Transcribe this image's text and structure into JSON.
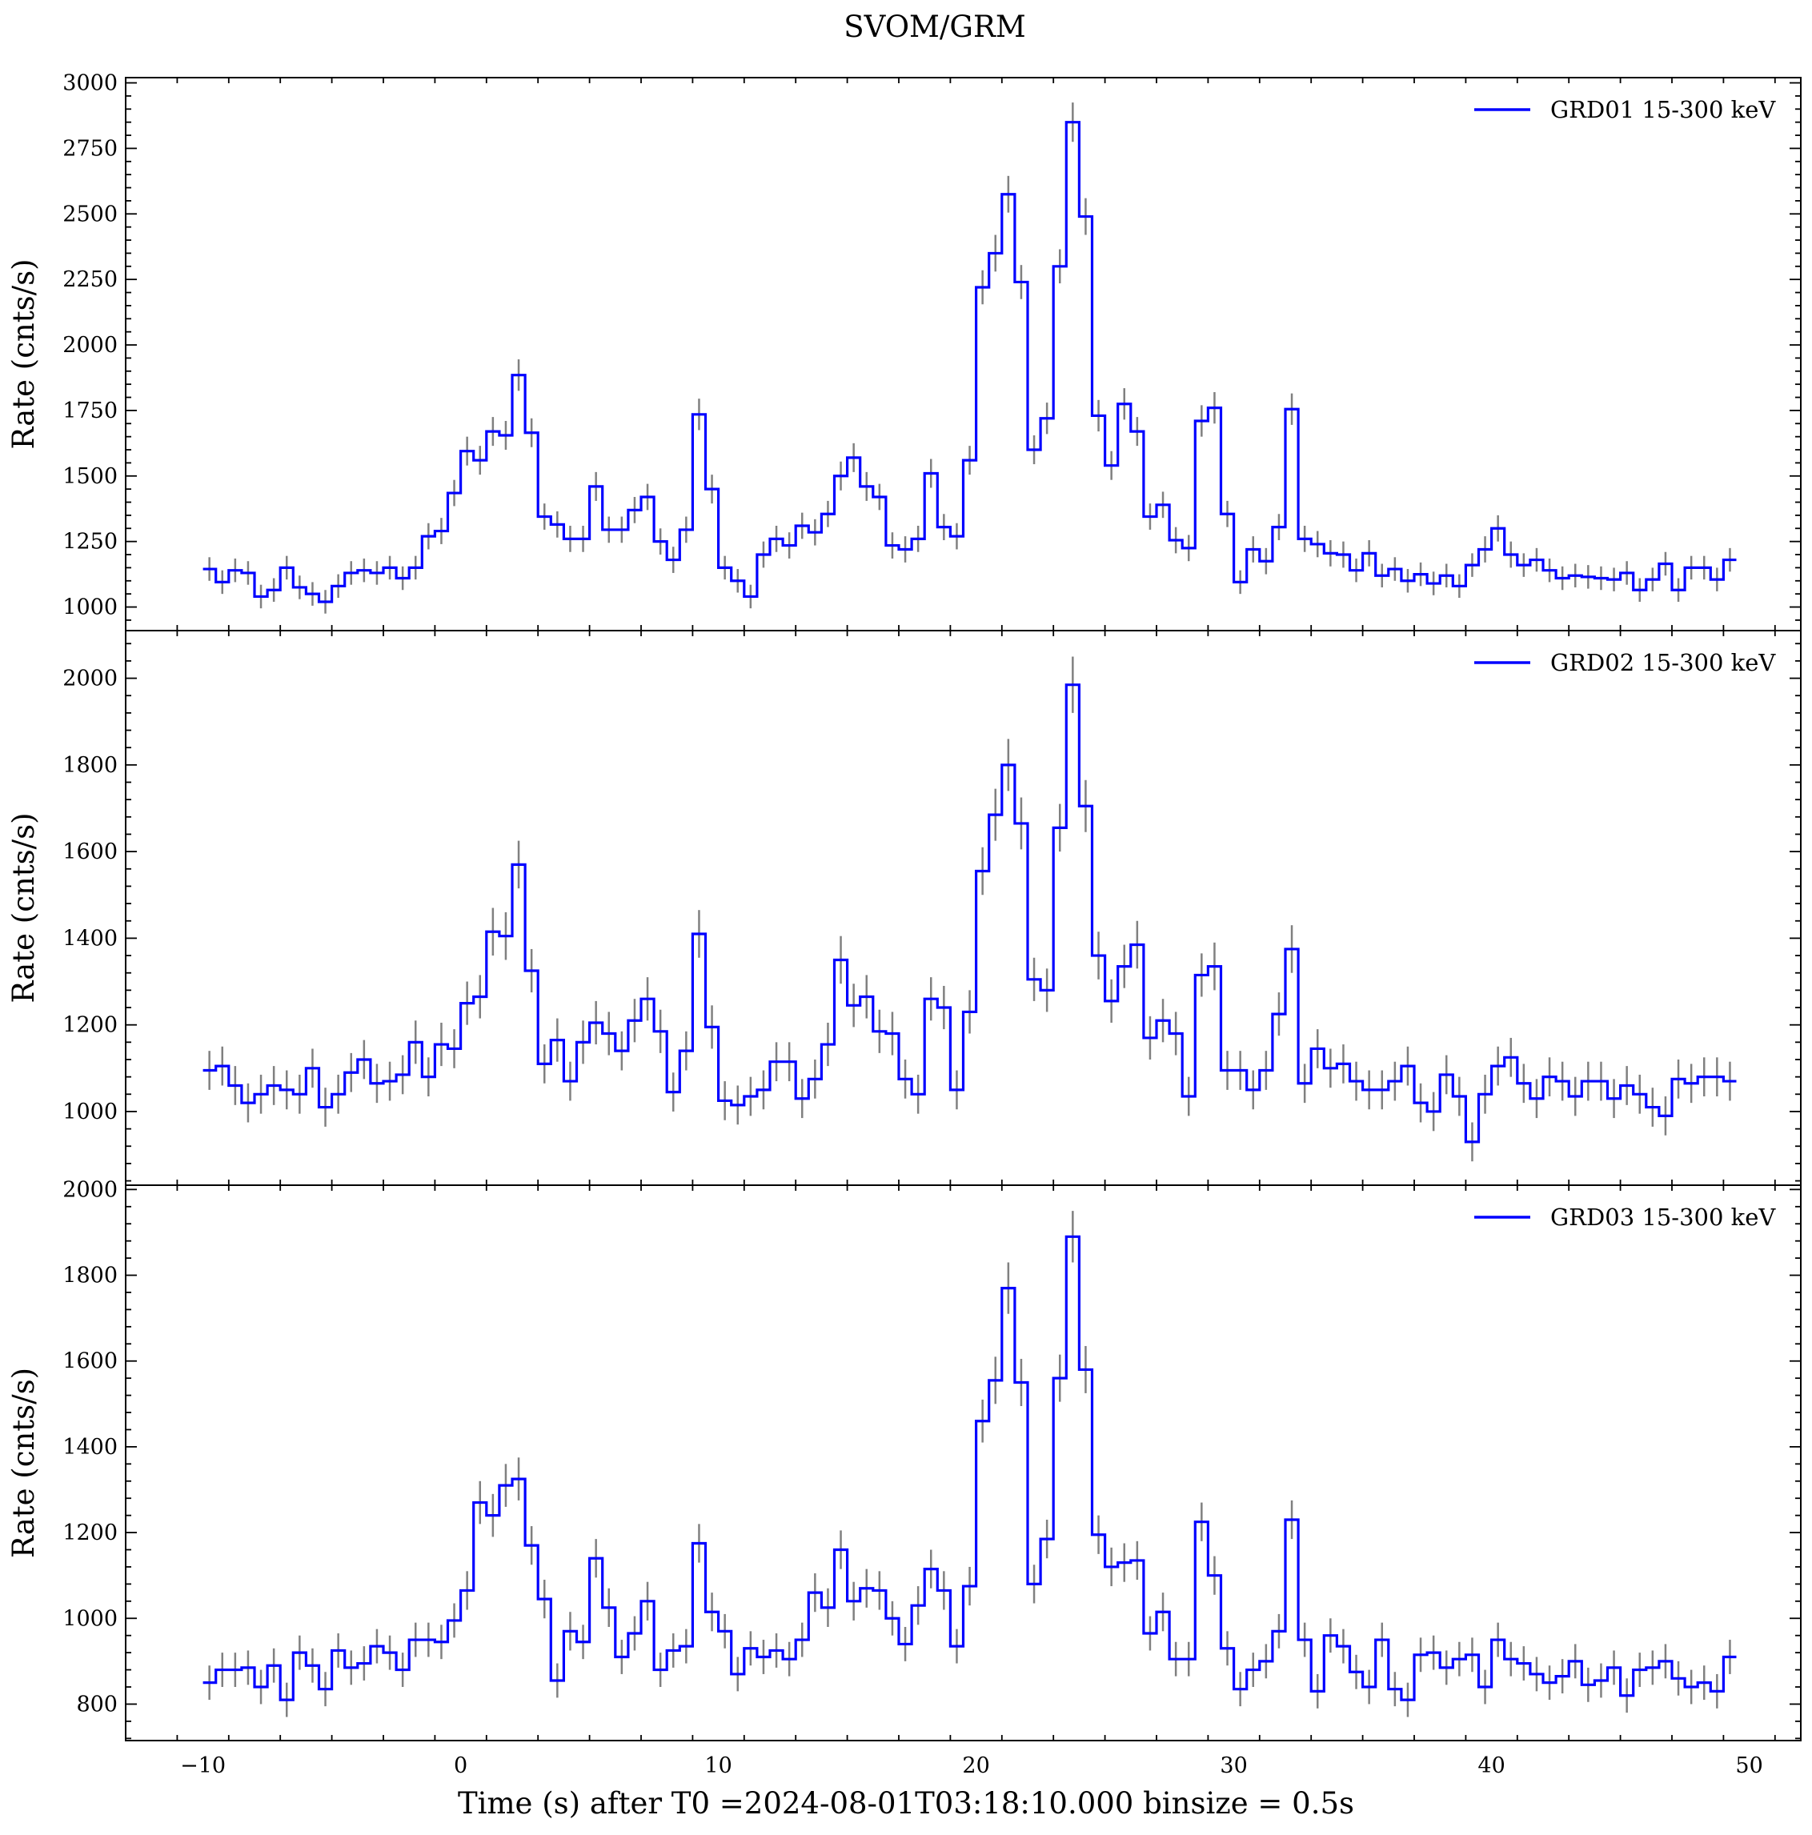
{
  "title": "SVOM/GRM",
  "chart_data": {
    "type": "line",
    "title": "SVOM/GRM",
    "xlabel": "Time (s) after T0 =2024-08-01T03:18:10.000 binsize = 0.5s",
    "ylabel": "Rate (cnts/s)",
    "xlim": [
      -13,
      52
    ],
    "xticks": [
      -10,
      0,
      10,
      20,
      30,
      40,
      50
    ],
    "bin_start": -10,
    "binsize": 0.5,
    "step_style": "histogram steps with error bars",
    "line_color": "#0000ff",
    "errorbar_color": "#808080",
    "legend_location": "upper right",
    "panels": [
      {
        "legend": "GRD01 15-300 keV",
        "ylabel": "Rate (cnts/s)",
        "ylim": [
          910,
          3020
        ],
        "yticks": [
          1000,
          1250,
          1500,
          1750,
          2000,
          2250,
          2500,
          2750,
          3000
        ],
        "values": [
          1145,
          1095,
          1140,
          1130,
          1040,
          1065,
          1150,
          1075,
          1050,
          1020,
          1080,
          1130,
          1140,
          1130,
          1150,
          1110,
          1150,
          1270,
          1290,
          1435,
          1595,
          1560,
          1670,
          1655,
          1885,
          1665,
          1345,
          1315,
          1260,
          1260,
          1460,
          1295,
          1295,
          1370,
          1420,
          1250,
          1180,
          1295,
          1735,
          1450,
          1150,
          1100,
          1040,
          1200,
          1260,
          1235,
          1310,
          1285,
          1355,
          1500,
          1570,
          1460,
          1420,
          1235,
          1220,
          1260,
          1510,
          1305,
          1270,
          1560,
          2220,
          2350,
          2575,
          2240,
          1600,
          1720,
          2300,
          2850,
          2490,
          1730,
          1540,
          1775,
          1670,
          1345,
          1390,
          1255,
          1225,
          1710,
          1760,
          1355,
          1095,
          1220,
          1175,
          1305,
          1755,
          1260,
          1240,
          1205,
          1200,
          1140,
          1205,
          1120,
          1145,
          1100,
          1125,
          1090,
          1120,
          1080,
          1160,
          1220,
          1300,
          1200,
          1160,
          1180,
          1140,
          1110,
          1120,
          1115,
          1110,
          1105,
          1130,
          1065,
          1105,
          1165,
          1065,
          1150,
          1150,
          1105,
          1180
        ],
        "errors": [
          45,
          45,
          45,
          45,
          45,
          45,
          45,
          45,
          45,
          45,
          45,
          45,
          45,
          45,
          45,
          45,
          45,
          50,
          50,
          50,
          55,
          55,
          55,
          55,
          60,
          55,
          50,
          50,
          50,
          50,
          55,
          50,
          50,
          50,
          50,
          50,
          50,
          50,
          60,
          55,
          45,
          45,
          45,
          50,
          50,
          50,
          50,
          50,
          50,
          55,
          55,
          55,
          50,
          50,
          50,
          50,
          55,
          50,
          50,
          55,
          65,
          70,
          70,
          65,
          55,
          60,
          65,
          75,
          70,
          60,
          55,
          60,
          55,
          50,
          50,
          50,
          50,
          60,
          60,
          50,
          45,
          50,
          50,
          50,
          60,
          50,
          50,
          50,
          50,
          45,
          50,
          45,
          45,
          45,
          45,
          45,
          45,
          45,
          45,
          50,
          50,
          50,
          45,
          45,
          45,
          45,
          45,
          45,
          45,
          45,
          45,
          45,
          45,
          45,
          45,
          45,
          45,
          45,
          45
        ]
      },
      {
        "legend": "GRD02 15-300 keV",
        "ylabel": "Rate (cnts/s)",
        "ylim": [
          830,
          2110
        ],
        "yticks": [
          1000,
          1200,
          1400,
          1600,
          1800,
          2000
        ],
        "values": [
          1095,
          1105,
          1060,
          1020,
          1040,
          1060,
          1050,
          1040,
          1100,
          1010,
          1040,
          1090,
          1120,
          1065,
          1070,
          1085,
          1160,
          1080,
          1155,
          1145,
          1250,
          1265,
          1415,
          1405,
          1570,
          1325,
          1110,
          1165,
          1070,
          1160,
          1205,
          1180,
          1140,
          1210,
          1260,
          1185,
          1045,
          1140,
          1410,
          1195,
          1025,
          1015,
          1035,
          1050,
          1115,
          1115,
          1030,
          1075,
          1155,
          1350,
          1245,
          1265,
          1185,
          1180,
          1075,
          1040,
          1260,
          1240,
          1050,
          1230,
          1555,
          1685,
          1800,
          1665,
          1305,
          1280,
          1655,
          1985,
          1705,
          1360,
          1255,
          1335,
          1385,
          1170,
          1210,
          1180,
          1035,
          1315,
          1335,
          1095,
          1095,
          1050,
          1095,
          1225,
          1375,
          1065,
          1145,
          1100,
          1110,
          1070,
          1050,
          1050,
          1070,
          1105,
          1020,
          1000,
          1085,
          1035,
          930,
          1040,
          1105,
          1125,
          1065,
          1030,
          1080,
          1070,
          1035,
          1070,
          1070,
          1030,
          1060,
          1040,
          1010,
          990,
          1075,
          1065,
          1080,
          1080,
          1070
        ],
        "errors": [
          45,
          45,
          45,
          45,
          45,
          45,
          45,
          45,
          45,
          45,
          45,
          45,
          45,
          45,
          45,
          45,
          50,
          45,
          50,
          45,
          50,
          50,
          55,
          55,
          55,
          50,
          45,
          50,
          45,
          50,
          50,
          50,
          45,
          50,
          50,
          50,
          45,
          45,
          55,
          50,
          45,
          45,
          45,
          45,
          45,
          45,
          45,
          45,
          50,
          55,
          50,
          50,
          50,
          50,
          45,
          45,
          50,
          50,
          45,
          50,
          55,
          60,
          60,
          60,
          50,
          50,
          55,
          65,
          60,
          55,
          50,
          50,
          55,
          50,
          50,
          50,
          45,
          50,
          55,
          45,
          45,
          45,
          45,
          50,
          55,
          45,
          45,
          45,
          45,
          45,
          45,
          45,
          45,
          45,
          45,
          45,
          45,
          45,
          45,
          45,
          45,
          45,
          45,
          45,
          45,
          45,
          45,
          45,
          45,
          45,
          45,
          45,
          45,
          45,
          45,
          45,
          45,
          45,
          45
        ]
      },
      {
        "legend": "GRD03 15-300 keV",
        "ylabel": "Rate (cnts/s)",
        "ylim": [
          715,
          2010
        ],
        "yticks": [
          800,
          1000,
          1200,
          1400,
          1600,
          1800,
          2000
        ],
        "values": [
          850,
          880,
          880,
          885,
          840,
          890,
          810,
          920,
          890,
          835,
          925,
          885,
          895,
          935,
          920,
          880,
          950,
          950,
          945,
          995,
          1065,
          1270,
          1240,
          1310,
          1325,
          1170,
          1045,
          855,
          970,
          945,
          1140,
          1025,
          910,
          965,
          1040,
          880,
          925,
          935,
          1175,
          1015,
          970,
          870,
          930,
          910,
          925,
          905,
          950,
          1060,
          1025,
          1160,
          1040,
          1070,
          1065,
          1000,
          940,
          1030,
          1115,
          1065,
          935,
          1075,
          1460,
          1555,
          1770,
          1550,
          1080,
          1185,
          1560,
          1890,
          1580,
          1195,
          1120,
          1130,
          1135,
          965,
          1015,
          905,
          905,
          1225,
          1100,
          930,
          835,
          880,
          900,
          970,
          1230,
          950,
          830,
          960,
          935,
          875,
          840,
          950,
          835,
          810,
          915,
          920,
          885,
          905,
          915,
          840,
          950,
          905,
          895,
          870,
          850,
          865,
          900,
          845,
          855,
          885,
          820,
          880,
          885,
          900,
          860,
          840,
          850,
          830,
          910
        ],
        "errors": [
          40,
          40,
          40,
          40,
          40,
          40,
          40,
          40,
          40,
          40,
          40,
          40,
          40,
          40,
          40,
          40,
          40,
          40,
          40,
          40,
          45,
          50,
          50,
          50,
          50,
          45,
          45,
          40,
          45,
          40,
          45,
          45,
          40,
          40,
          45,
          40,
          40,
          40,
          45,
          45,
          40,
          40,
          40,
          40,
          40,
          40,
          40,
          45,
          45,
          45,
          45,
          45,
          45,
          40,
          40,
          45,
          45,
          45,
          40,
          45,
          50,
          55,
          60,
          55,
          45,
          45,
          55,
          60,
          55,
          45,
          45,
          45,
          45,
          40,
          45,
          40,
          40,
          45,
          45,
          40,
          40,
          40,
          40,
          40,
          45,
          40,
          40,
          40,
          40,
          40,
          40,
          40,
          40,
          40,
          40,
          40,
          40,
          40,
          40,
          40,
          40,
          40,
          40,
          40,
          40,
          40,
          40,
          40,
          40,
          40,
          40,
          40,
          40,
          40,
          40,
          40,
          40,
          40,
          40
        ]
      }
    ]
  }
}
